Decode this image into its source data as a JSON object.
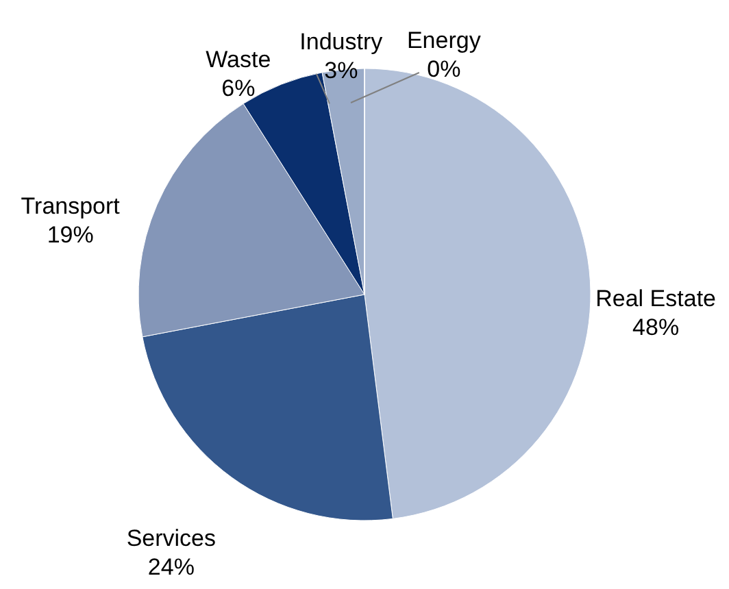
{
  "chart_data": {
    "type": "pie",
    "categories": [
      "Real Estate",
      "Services",
      "Transport",
      "Waste",
      "Industry",
      "Energy"
    ],
    "values": [
      48,
      24,
      19,
      6,
      3,
      0
    ],
    "value_labels": [
      "48%",
      "24%",
      "19%",
      "6%",
      "3%",
      "0%"
    ],
    "colors": [
      "#b3c1d9",
      "#33578c",
      "#8496b8",
      "#0a2f6e",
      "#9aabc8",
      "#c6d1e3"
    ],
    "legend": false
  }
}
